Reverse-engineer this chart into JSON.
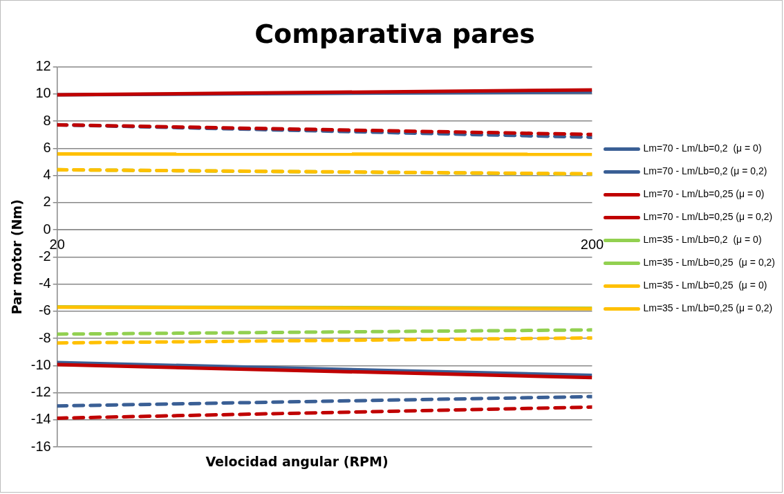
{
  "chart_data": {
    "type": "line",
    "title": "Comparativa pares",
    "xlabel": "Velocidad angular (RPM)",
    "ylabel": "Par motor (Nm)",
    "x": [
      20,
      200
    ],
    "xlim": [
      20,
      200
    ],
    "xticks": [
      20,
      200
    ],
    "ylim": [
      -16,
      12
    ],
    "yticks": [
      -16,
      -14,
      -12,
      -10,
      -8,
      -6,
      -4,
      -2,
      0,
      2,
      4,
      6,
      8,
      10,
      12
    ],
    "grid": "y",
    "legend": "right",
    "marker": "none",
    "series": [
      {
        "name": "Lm=70 - Lm/Lb=0,2  (μ = 0)",
        "color": "#3a5f95",
        "line_style": "solid",
        "values": [
          9.94,
          10.14
        ]
      },
      {
        "color": "#3a5f95",
        "line_style": "solid",
        "values": [
          -9.78,
          -10.73
        ]
      },
      {
        "name": "Lm=70 - Lm/Lb=0,2 (μ = 0,2)",
        "color": "#3a5f95",
        "line_style": "dashed",
        "values": [
          7.73,
          6.81
        ]
      },
      {
        "color": "#3a5f95",
        "line_style": "dashed",
        "values": [
          -12.98,
          -12.29
        ]
      },
      {
        "name": "Lm=70 - Lm/Lb=0,25 (μ = 0)",
        "color": "#c00000",
        "line_style": "solid",
        "values": [
          9.94,
          10.3
        ]
      },
      {
        "color": "#c00000",
        "line_style": "solid",
        "values": [
          -9.94,
          -10.89
        ]
      },
      {
        "name": "Lm=70 - Lm/Lb=0,25 (μ = 0,2)",
        "color": "#c00000",
        "line_style": "dashed",
        "values": [
          7.73,
          7.02
        ]
      },
      {
        "color": "#c00000",
        "line_style": "dashed",
        "values": [
          -13.88,
          -13.06
        ]
      },
      {
        "name": "Lm=35 - Lm/Lb=0,2  (μ = 0)",
        "color": "#92d050",
        "line_style": "solid",
        "values": [
          -5.68,
          -5.78
        ]
      },
      {
        "name": "Lm=35 - Lm/Lb=0,25  (μ = 0,2)",
        "color": "#92d050",
        "line_style": "dashed",
        "values": [
          4.42,
          4.1
        ]
      },
      {
        "color": "#92d050",
        "line_style": "dashed",
        "values": [
          -7.69,
          -7.38
        ]
      },
      {
        "name": "Lm=35 - Lm/Lb=0,25  (μ = 0)",
        "color": "#ffc000",
        "line_style": "solid",
        "values": [
          5.58,
          5.56
        ]
      },
      {
        "color": "#ffc000",
        "line_style": "solid",
        "values": [
          -5.7,
          -5.82
        ]
      },
      {
        "name": "Lm=35 - Lm/Lb=0,25 (μ = 0,2)",
        "color": "#ffc000",
        "line_style": "dashed",
        "values": [
          4.42,
          4.12
        ]
      },
      {
        "color": "#ffc000",
        "line_style": "dashed",
        "values": [
          -8.34,
          -7.97
        ]
      }
    ]
  }
}
